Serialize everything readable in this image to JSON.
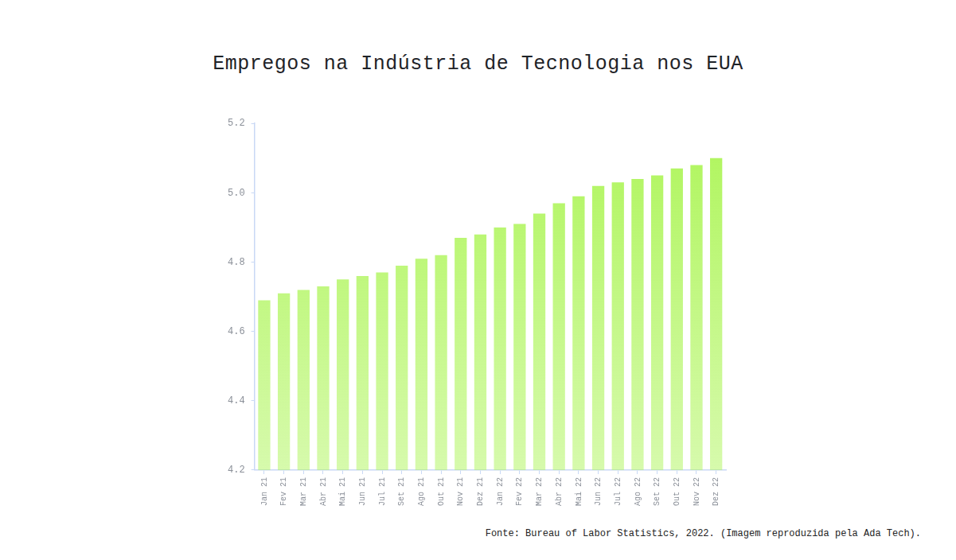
{
  "chart_data": {
    "type": "bar",
    "title": "Empregos na Indústria de Tecnologia nos EUA",
    "source": "Fonte: Bureau of Labor Statistics, 2022. (Imagem reproduzida pela Ada Tech).",
    "categories": [
      "Jan 21",
      "Fev 21",
      "Mar 21",
      "Abr 21",
      "Mai 21",
      "Jun 21",
      "Jul 21",
      "Set 21",
      "Ago 21",
      "Out 21",
      "Nov 21",
      "Dez 21",
      "Jan 22",
      "Fev 22",
      "Mar 22",
      "Abr 22",
      "Mai 22",
      "Jun 22",
      "Jul 22",
      "Ago 22",
      "Set 22",
      "Out 22",
      "Nov 22",
      "Dez 22"
    ],
    "values": [
      4.69,
      4.71,
      4.72,
      4.73,
      4.75,
      4.76,
      4.77,
      4.79,
      4.81,
      4.82,
      4.87,
      4.88,
      4.9,
      4.91,
      4.94,
      4.97,
      4.99,
      5.02,
      5.03,
      5.04,
      5.05,
      5.07,
      5.08,
      5.1
    ],
    "color": "#aef55a",
    "ylim": [
      4.2,
      5.2
    ],
    "yticks": [
      4.2,
      4.4,
      4.6,
      4.8,
      {
        "value": 5,
        "label": "5.0"
      },
      5.2
    ],
    "grid": false
  }
}
